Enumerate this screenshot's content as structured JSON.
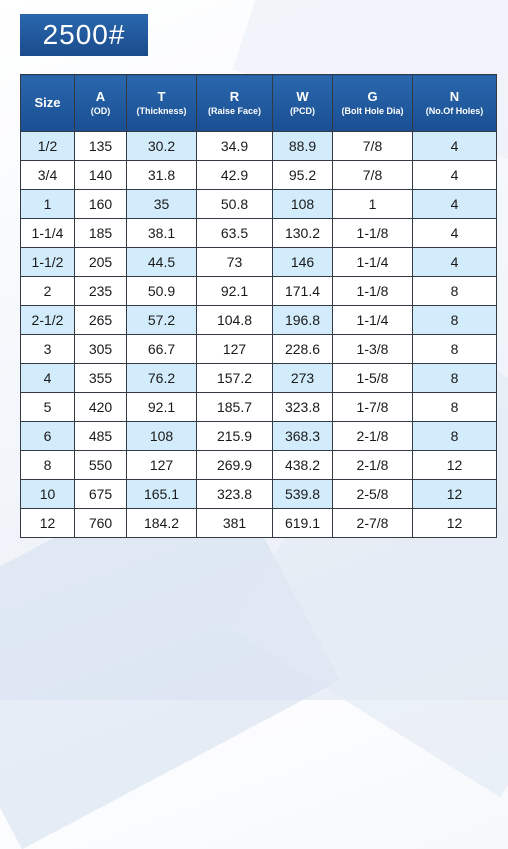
{
  "title": "2500#",
  "columns": [
    {
      "label": "Size",
      "sub": ""
    },
    {
      "label": "A",
      "sub": "(OD)"
    },
    {
      "label": "T",
      "sub": "(Thickness)"
    },
    {
      "label": "R",
      "sub": "(Raise Face)"
    },
    {
      "label": "W",
      "sub": "(PCD)"
    },
    {
      "label": "G",
      "sub": "(Bolt Hole Dia)"
    },
    {
      "label": "N",
      "sub": "(No.Of Holes)"
    }
  ],
  "rows": [
    [
      "1/2",
      "135",
      "30.2",
      "34.9",
      "88.9",
      "7/8",
      "4"
    ],
    [
      "3/4",
      "140",
      "31.8",
      "42.9",
      "95.2",
      "7/8",
      "4"
    ],
    [
      "1",
      "160",
      "35",
      "50.8",
      "108",
      "1",
      "4"
    ],
    [
      "1-1/4",
      "185",
      "38.1",
      "63.5",
      "130.2",
      "1-1/8",
      "4"
    ],
    [
      "1-1/2",
      "205",
      "44.5",
      "73",
      "146",
      "1-1/4",
      "4"
    ],
    [
      "2",
      "235",
      "50.9",
      "92.1",
      "171.4",
      "1-1/8",
      "8"
    ],
    [
      "2-1/2",
      "265",
      "57.2",
      "104.8",
      "196.8",
      "1-1/4",
      "8"
    ],
    [
      "3",
      "305",
      "66.7",
      "127",
      "228.6",
      "1-3/8",
      "8"
    ],
    [
      "4",
      "355",
      "76.2",
      "157.2",
      "273",
      "1-5/8",
      "8"
    ],
    [
      "5",
      "420",
      "92.1",
      "185.7",
      "323.8",
      "1-7/8",
      "8"
    ],
    [
      "6",
      "485",
      "108",
      "215.9",
      "368.3",
      "2-1/8",
      "8"
    ],
    [
      "8",
      "550",
      "127",
      "269.9",
      "438.2",
      "2-1/8",
      "12"
    ],
    [
      "10",
      "675",
      "165.1",
      "323.8",
      "539.8",
      "2-5/8",
      "12"
    ],
    [
      "12",
      "760",
      "184.2",
      "381",
      "619.1",
      "2-7/8",
      "12"
    ]
  ],
  "colors": {
    "header": "#1f5a9e",
    "shaded_cell": "#d3ecfb",
    "border": "#333a44"
  }
}
